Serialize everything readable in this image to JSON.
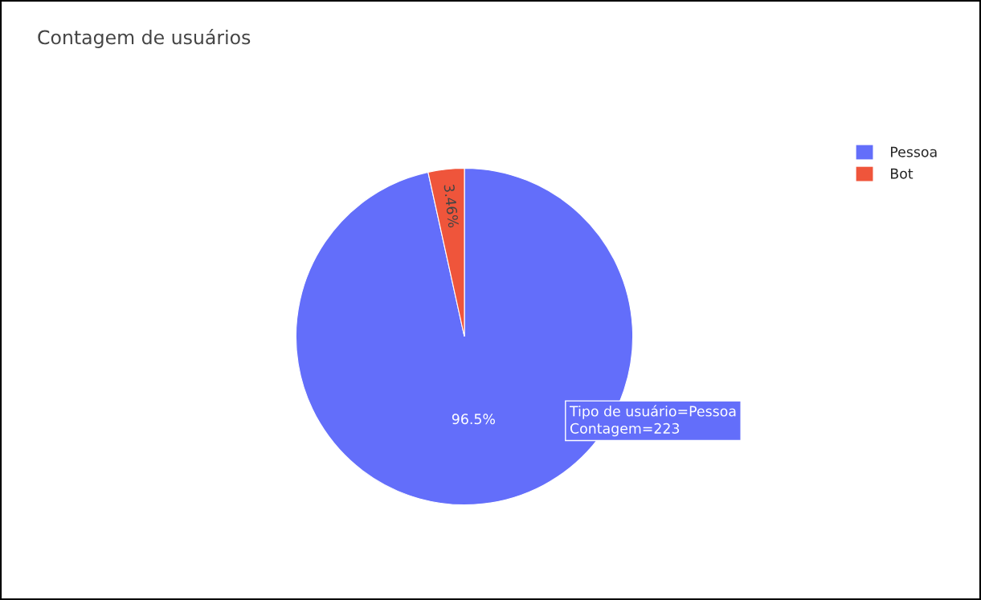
{
  "chart_data": {
    "type": "pie",
    "title": "Contagem de usuários",
    "categories": [
      "Pessoa",
      "Bot"
    ],
    "values": [
      96.54,
      3.46
    ],
    "colors": [
      "#636efa",
      "#ef553b"
    ],
    "value_labels": [
      "96.5%",
      "3.46%"
    ],
    "legend": "top right",
    "annotations": [
      "Tipo de usuário=Pessoa\nContagem=223"
    ]
  }
}
